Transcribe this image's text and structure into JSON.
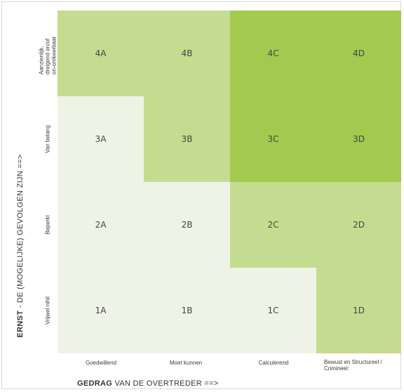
{
  "rows": [
    {
      "id": "4",
      "label": "Aanzienlijk, dreigend en/of on-omkeerbaar"
    },
    {
      "id": "3",
      "label": "Van belang"
    },
    {
      "id": "2",
      "label": "Beperkt"
    },
    {
      "id": "1",
      "label": "Vrijwel nihil"
    }
  ],
  "columns": [
    {
      "id": "A",
      "label": "Goedwillend"
    },
    {
      "id": "B",
      "label": "Moet kunnen"
    },
    {
      "id": "C",
      "label": "Calculerend"
    },
    {
      "id": "D",
      "label": "Bewust en Structureel / Crimineel:"
    }
  ],
  "cells": [
    [
      "4A",
      "4B",
      "4C",
      "4D"
    ],
    [
      "3A",
      "3B",
      "3C",
      "3D"
    ],
    [
      "2A",
      "2B",
      "2C",
      "2D"
    ],
    [
      "1A",
      "1B",
      "1C",
      "1D"
    ]
  ],
  "cell_shades": [
    [
      "#c4dc8f",
      "#c4dc8f",
      "#a3c94e",
      "#a3c94e"
    ],
    [
      "#eef3e6",
      "#c4dc8f",
      "#a3c94e",
      "#a3c94e"
    ],
    [
      "#eef3e6",
      "#eef3e6",
      "#c4dc8f",
      "#c4dc8f"
    ],
    [
      "#eef3e6",
      "#eef3e6",
      "#eef3e6",
      "#c4dc8f"
    ]
  ],
  "y_axis": {
    "title_bold": "ERNST",
    "title_rest": " - DE (MOGELIJKE) GEVOLGEN ZIJN  ==>"
  },
  "x_axis": {
    "title_bold": "GEDRAG",
    "title_rest": " VAN DE OVERTREDER  ==>"
  }
}
